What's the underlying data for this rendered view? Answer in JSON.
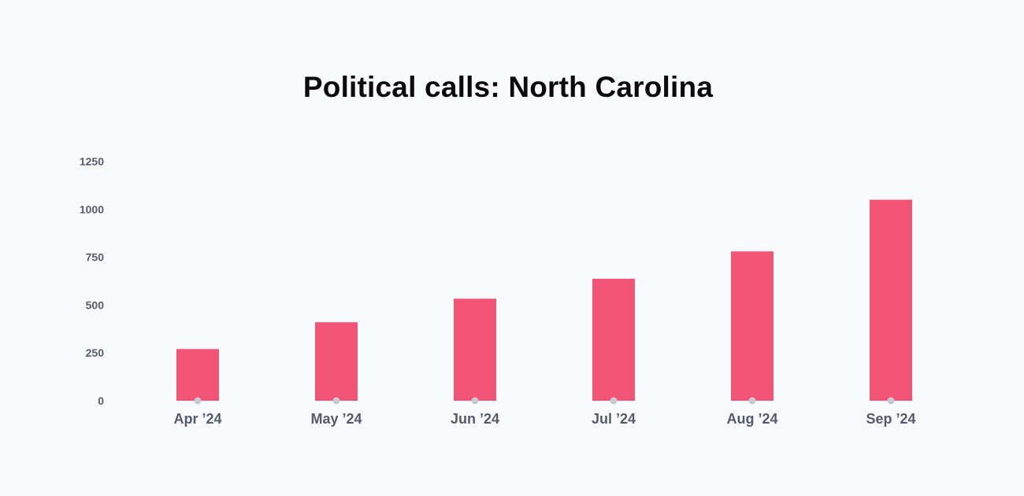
{
  "chart_data": {
    "type": "bar",
    "title": "Political calls: North Carolina",
    "xlabel": "",
    "ylabel": "",
    "categories": [
      "Apr ’24",
      "May ’24",
      "Jun ’24",
      "Jul ’24",
      "Aug ’24",
      "Sep ’24"
    ],
    "values": [
      270,
      410,
      533,
      637,
      780,
      1050
    ],
    "ylim": [
      0,
      1250
    ],
    "yticks": [
      "0",
      "250",
      "500",
      "750",
      "1000",
      "1250"
    ],
    "grid": true,
    "legend": "none",
    "colors": {
      "bar": "#f15477",
      "grid": "#c9ccd6",
      "marker": "#c7cad3"
    }
  }
}
